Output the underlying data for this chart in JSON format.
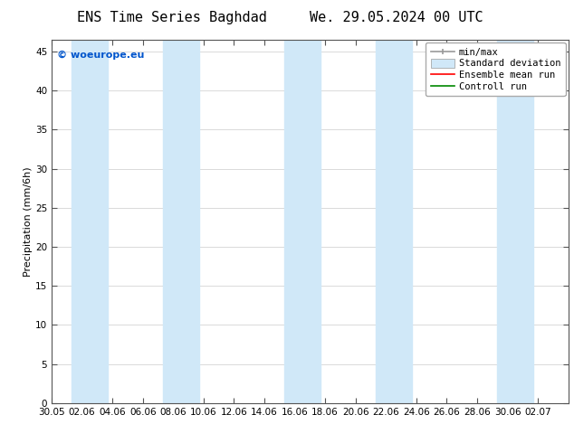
{
  "title_left": "ENS Time Series Baghdad",
  "title_right": "We. 29.05.2024 00 UTC",
  "ylabel": "Precipitation (mm/6h)",
  "watermark": "© woeurope.eu",
  "watermark_color": "#0055cc",
  "xlim_start": 0,
  "xlim_end": 34,
  "ylim": [
    0,
    46.5
  ],
  "yticks": [
    0,
    5,
    10,
    15,
    20,
    25,
    30,
    35,
    40,
    45
  ],
  "xtick_labels": [
    "30.05",
    "02.06",
    "04.06",
    "06.06",
    "08.06",
    "10.06",
    "12.06",
    "14.06",
    "16.06",
    "18.06",
    "20.06",
    "22.06",
    "24.06",
    "26.06",
    "28.06",
    "30.06",
    "02.07"
  ],
  "xtick_positions": [
    0,
    2,
    4,
    6,
    8,
    10,
    12,
    14,
    16,
    18,
    20,
    22,
    24,
    26,
    28,
    30,
    32
  ],
  "shaded_bands": [
    {
      "xmin": 1.3,
      "xmax": 3.7,
      "color": "#d0e8f8"
    },
    {
      "xmin": 7.3,
      "xmax": 9.7,
      "color": "#d0e8f8"
    },
    {
      "xmin": 15.3,
      "xmax": 17.7,
      "color": "#d0e8f8"
    },
    {
      "xmin": 21.3,
      "xmax": 23.7,
      "color": "#d0e8f8"
    },
    {
      "xmin": 29.3,
      "xmax": 31.7,
      "color": "#d0e8f8"
    }
  ],
  "background_color": "#ffffff",
  "axes_color": "#555555",
  "grid_color": "#cccccc",
  "legend_minmax_color": "#999999",
  "legend_std_color": "#d0e8f8",
  "legend_ens_color": "#ff0000",
  "legend_ctrl_color": "#008800",
  "title_fontsize": 11,
  "axis_label_fontsize": 8,
  "tick_fontsize": 7.5,
  "legend_fontsize": 7.5
}
